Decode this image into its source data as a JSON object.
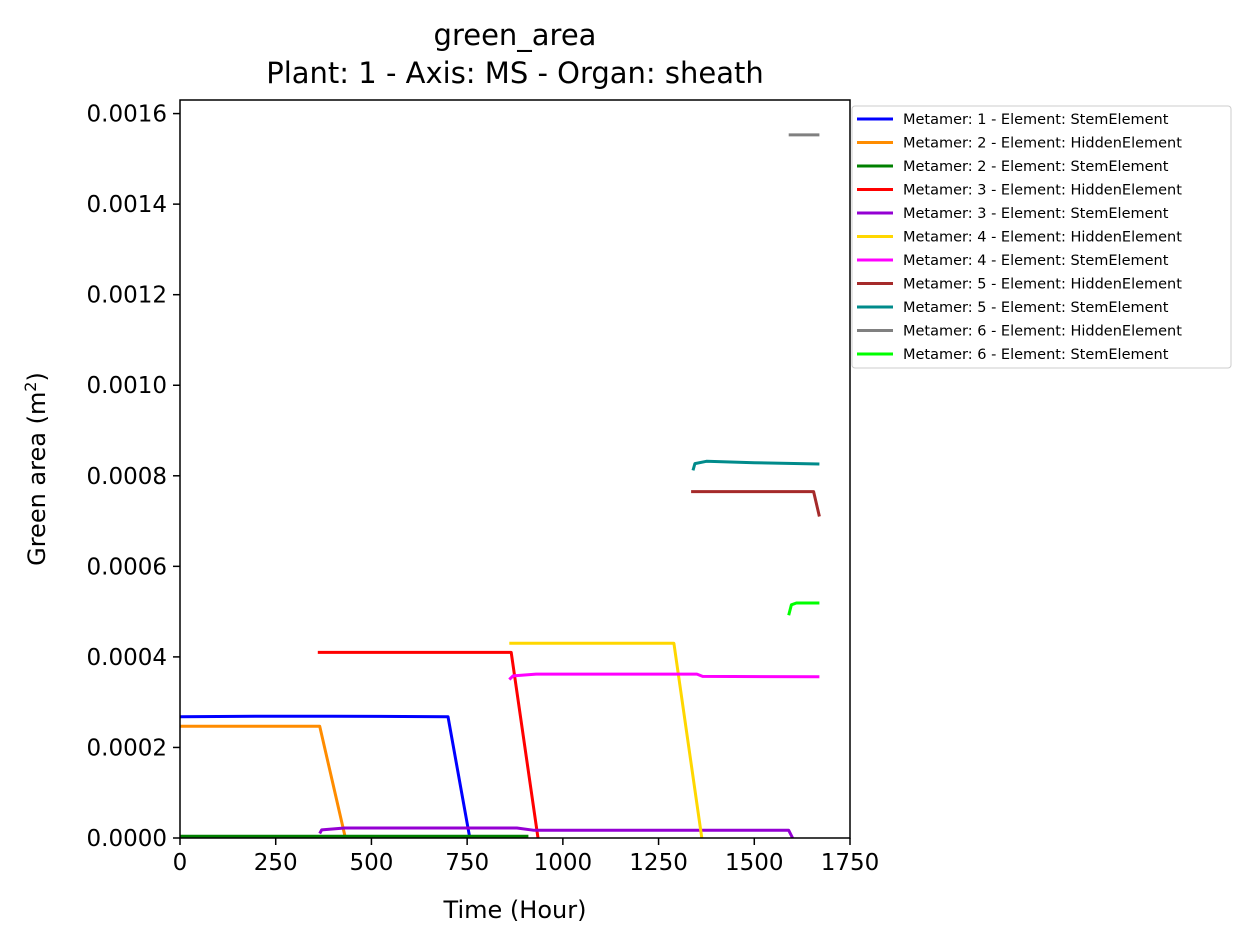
{
  "chart_data": {
    "type": "line",
    "title": "green_area",
    "subtitle": "Plant: 1 - Axis: MS - Organ: sheath",
    "xlabel": "Time (Hour)",
    "ylabel_prefix": "Green area (m",
    "ylabel_sup": "2",
    "ylabel_suffix": ")",
    "xlim": [
      0,
      1750
    ],
    "ylim": [
      0,
      0.00163
    ],
    "x_ticks": [
      0,
      250,
      500,
      750,
      1000,
      1250,
      1500,
      1750
    ],
    "x_tick_labels": [
      "0",
      "250",
      "500",
      "750",
      "1000",
      "1250",
      "1500",
      "1750"
    ],
    "y_ticks": [
      0,
      0.0002,
      0.0004,
      0.0006,
      0.0008,
      0.001,
      0.0012,
      0.0014,
      0.0016
    ],
    "y_tick_labels": [
      "0.0000",
      "0.0002",
      "0.0004",
      "0.0006",
      "0.0008",
      "0.0010",
      "0.0012",
      "0.0014",
      "0.0016"
    ],
    "grid": false,
    "legend_position": "outside-right-top",
    "series": [
      {
        "name": "Metamer: 1 - Element: StemElement",
        "color": "#0000ff",
        "points": [
          [
            0,
            0.000268
          ],
          [
            200,
            0.000269
          ],
          [
            400,
            0.000269
          ],
          [
            700,
            0.000268
          ],
          [
            757,
            0.0
          ]
        ]
      },
      {
        "name": "Metamer: 2 - Element: HiddenElement",
        "color": "#ff8c00",
        "points": [
          [
            0,
            0.000247
          ],
          [
            365,
            0.000247
          ],
          [
            432,
            0.0
          ]
        ]
      },
      {
        "name": "Metamer: 2 - Element: StemElement",
        "color": "#008000",
        "points": [
          [
            0,
            4e-06
          ],
          [
            300,
            4e-06
          ],
          [
            600,
            4e-06
          ],
          [
            910,
            4e-06
          ]
        ]
      },
      {
        "name": "Metamer: 3 - Element: HiddenElement",
        "color": "#ff0000",
        "points": [
          [
            360,
            0.00041
          ],
          [
            865,
            0.00041
          ],
          [
            935,
            0.0
          ]
        ]
      },
      {
        "name": "Metamer: 3 - Element: StemElement",
        "color": "#9400d3",
        "points": [
          [
            365,
            1e-05
          ],
          [
            370,
            1.8e-05
          ],
          [
            430,
            2.2e-05
          ],
          [
            880,
            2.2e-05
          ],
          [
            925,
            1.7e-05
          ],
          [
            1590,
            1.7e-05
          ],
          [
            1600,
            0.0
          ]
        ]
      },
      {
        "name": "Metamer: 4 - Element: HiddenElement",
        "color": "#ffd700",
        "points": [
          [
            860,
            0.00043
          ],
          [
            1290,
            0.00043
          ],
          [
            1363,
            0.0
          ]
        ]
      },
      {
        "name": "Metamer: 4 - Element: StemElement",
        "color": "#ff00ff",
        "points": [
          [
            860,
            0.00035
          ],
          [
            870,
            0.000358
          ],
          [
            930,
            0.000362
          ],
          [
            1350,
            0.000362
          ],
          [
            1365,
            0.000357
          ],
          [
            1670,
            0.000356
          ]
        ]
      },
      {
        "name": "Metamer: 5 - Element: HiddenElement",
        "color": "#a52a2a",
        "points": [
          [
            1335,
            0.000765
          ],
          [
            1655,
            0.000765
          ],
          [
            1670,
            0.00071
          ]
        ]
      },
      {
        "name": "Metamer: 5 - Element: StemElement",
        "color": "#008b8b",
        "points": [
          [
            1340,
            0.000812
          ],
          [
            1345,
            0.000827
          ],
          [
            1375,
            0.000832
          ],
          [
            1500,
            0.000829
          ],
          [
            1670,
            0.000826
          ]
        ]
      },
      {
        "name": "Metamer: 6 - Element: HiddenElement",
        "color": "#808080",
        "points": [
          [
            1590,
            0.001553
          ],
          [
            1670,
            0.001553
          ]
        ]
      },
      {
        "name": "Metamer: 6 - Element: StemElement",
        "color": "#00ff00",
        "points": [
          [
            1590,
            0.000492
          ],
          [
            1597,
            0.000515
          ],
          [
            1610,
            0.000519
          ],
          [
            1670,
            0.000519
          ]
        ]
      }
    ]
  }
}
